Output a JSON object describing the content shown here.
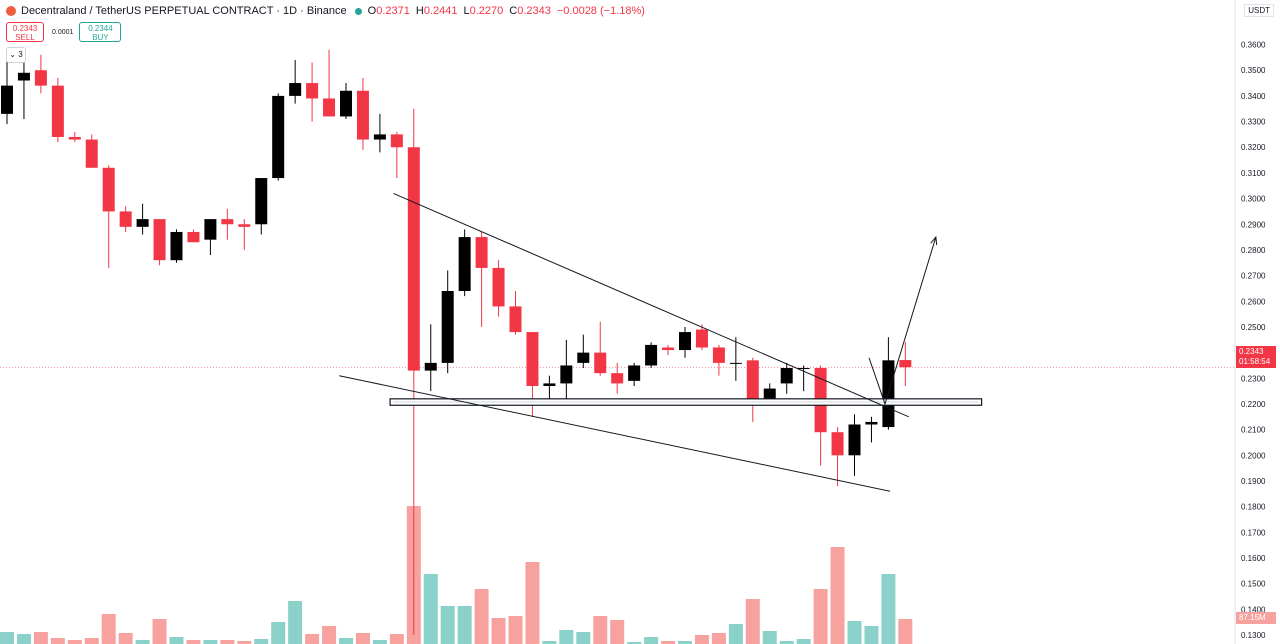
{
  "header": {
    "title": "Decentraland / TetherUS PERPETUAL CONTRACT · 1D · Binance",
    "o_label": "O",
    "o_value": "0.2371",
    "h_label": "H",
    "h_value": "0.2441",
    "l_label": "L",
    "l_value": "0.2270",
    "c_label": "C",
    "c_value": "0.2343",
    "change": "−0.0028 (−1.18%)"
  },
  "trade": {
    "sell_price": "0.2343",
    "sell_label": "SELL",
    "spread": "0.0001",
    "buy_price": "0.2344",
    "buy_label": "BUY"
  },
  "collapse_label": "3",
  "currency_label": "USDT",
  "last_price_tag": {
    "price": "0.2343",
    "countdown": "01:58:54"
  },
  "volume_tag": "87.15M",
  "colors": {
    "up": "#000000",
    "down": "#f23645",
    "vol_up": "#89d1c9",
    "vol_down": "#f7a29f"
  },
  "chart_data": {
    "type": "candlestick",
    "y_ticks": [
      "0.3600",
      "0.3500",
      "0.3400",
      "0.3300",
      "0.3200",
      "0.3100",
      "0.3000",
      "0.2900",
      "0.2800",
      "0.2700",
      "0.2600",
      "0.2500",
      "0.2400",
      "0.2300",
      "0.2200",
      "0.2100",
      "0.2000",
      "0.1900",
      "0.1800",
      "0.1700",
      "0.1600",
      "0.1500",
      "0.1400",
      "0.1300"
    ],
    "ylim": [
      0.1265,
      0.3645
    ],
    "candles": [
      {
        "o": 0.333,
        "h": 0.355,
        "l": 0.329,
        "c": 0.344,
        "v": 12
      },
      {
        "o": 0.346,
        "h": 0.354,
        "l": 0.331,
        "c": 0.349,
        "v": 10
      },
      {
        "o": 0.35,
        "h": 0.356,
        "l": 0.341,
        "c": 0.344,
        "v": 12
      },
      {
        "o": 0.344,
        "h": 0.347,
        "l": 0.322,
        "c": 0.324,
        "v": 6
      },
      {
        "o": 0.324,
        "h": 0.326,
        "l": 0.322,
        "c": 0.323,
        "v": 4
      },
      {
        "o": 0.323,
        "h": 0.325,
        "l": 0.312,
        "c": 0.312,
        "v": 6
      },
      {
        "o": 0.312,
        "h": 0.313,
        "l": 0.273,
        "c": 0.295,
        "v": 30
      },
      {
        "o": 0.295,
        "h": 0.297,
        "l": 0.287,
        "c": 0.289,
        "v": 11
      },
      {
        "o": 0.289,
        "h": 0.298,
        "l": 0.286,
        "c": 0.292,
        "v": 4
      },
      {
        "o": 0.292,
        "h": 0.292,
        "l": 0.274,
        "c": 0.276,
        "v": 25
      },
      {
        "o": 0.276,
        "h": 0.288,
        "l": 0.275,
        "c": 0.287,
        "v": 7
      },
      {
        "o": 0.287,
        "h": 0.288,
        "l": 0.283,
        "c": 0.283,
        "v": 4
      },
      {
        "o": 0.284,
        "h": 0.292,
        "l": 0.278,
        "c": 0.292,
        "v": 4
      },
      {
        "o": 0.292,
        "h": 0.296,
        "l": 0.284,
        "c": 0.29,
        "v": 4
      },
      {
        "o": 0.29,
        "h": 0.292,
        "l": 0.28,
        "c": 0.289,
        "v": 3
      },
      {
        "o": 0.29,
        "h": 0.308,
        "l": 0.286,
        "c": 0.308,
        "v": 5
      },
      {
        "o": 0.308,
        "h": 0.341,
        "l": 0.307,
        "c": 0.34,
        "v": 22
      },
      {
        "o": 0.34,
        "h": 0.354,
        "l": 0.337,
        "c": 0.345,
        "v": 43
      },
      {
        "o": 0.345,
        "h": 0.353,
        "l": 0.33,
        "c": 0.339,
        "v": 10
      },
      {
        "o": 0.339,
        "h": 0.358,
        "l": 0.332,
        "c": 0.332,
        "v": 18
      },
      {
        "o": 0.332,
        "h": 0.345,
        "l": 0.331,
        "c": 0.342,
        "v": 6
      },
      {
        "o": 0.342,
        "h": 0.347,
        "l": 0.319,
        "c": 0.323,
        "v": 11
      },
      {
        "o": 0.323,
        "h": 0.333,
        "l": 0.318,
        "c": 0.325,
        "v": 4
      },
      {
        "o": 0.325,
        "h": 0.326,
        "l": 0.308,
        "c": 0.32,
        "v": 10
      },
      {
        "o": 0.32,
        "h": 0.335,
        "l": 0.13,
        "c": 0.233,
        "v": 138
      },
      {
        "o": 0.233,
        "h": 0.251,
        "l": 0.225,
        "c": 0.236,
        "v": 70
      },
      {
        "o": 0.236,
        "h": 0.272,
        "l": 0.232,
        "c": 0.264,
        "v": 38
      },
      {
        "o": 0.264,
        "h": 0.288,
        "l": 0.262,
        "c": 0.285,
        "v": 38
      },
      {
        "o": 0.285,
        "h": 0.287,
        "l": 0.25,
        "c": 0.273,
        "v": 55
      },
      {
        "o": 0.273,
        "h": 0.276,
        "l": 0.254,
        "c": 0.258,
        "v": 26
      },
      {
        "o": 0.258,
        "h": 0.264,
        "l": 0.247,
        "c": 0.248,
        "v": 28
      },
      {
        "o": 0.248,
        "h": 0.248,
        "l": 0.215,
        "c": 0.227,
        "v": 82
      },
      {
        "o": 0.227,
        "h": 0.231,
        "l": 0.222,
        "c": 0.228,
        "v": 3
      },
      {
        "o": 0.228,
        "h": 0.245,
        "l": 0.222,
        "c": 0.235,
        "v": 14
      },
      {
        "o": 0.236,
        "h": 0.247,
        "l": 0.234,
        "c": 0.24,
        "v": 12
      },
      {
        "o": 0.24,
        "h": 0.252,
        "l": 0.231,
        "c": 0.232,
        "v": 28
      },
      {
        "o": 0.232,
        "h": 0.236,
        "l": 0.224,
        "c": 0.228,
        "v": 24
      },
      {
        "o": 0.229,
        "h": 0.236,
        "l": 0.227,
        "c": 0.235,
        "v": 2
      },
      {
        "o": 0.235,
        "h": 0.244,
        "l": 0.234,
        "c": 0.243,
        "v": 7
      },
      {
        "o": 0.242,
        "h": 0.243,
        "l": 0.239,
        "c": 0.241,
        "v": 3
      },
      {
        "o": 0.241,
        "h": 0.25,
        "l": 0.238,
        "c": 0.248,
        "v": 3
      },
      {
        "o": 0.249,
        "h": 0.251,
        "l": 0.241,
        "c": 0.242,
        "v": 9
      },
      {
        "o": 0.242,
        "h": 0.243,
        "l": 0.231,
        "c": 0.236,
        "v": 11
      },
      {
        "o": 0.236,
        "h": 0.246,
        "l": 0.229,
        "c": 0.236,
        "v": 20
      },
      {
        "o": 0.237,
        "h": 0.238,
        "l": 0.213,
        "c": 0.222,
        "v": 45
      },
      {
        "o": 0.222,
        "h": 0.228,
        "l": 0.22,
        "c": 0.226,
        "v": 13
      },
      {
        "o": 0.228,
        "h": 0.236,
        "l": 0.224,
        "c": 0.234,
        "v": 3
      },
      {
        "o": 0.234,
        "h": 0.235,
        "l": 0.225,
        "c": 0.234,
        "v": 5
      },
      {
        "o": 0.234,
        "h": 0.235,
        "l": 0.196,
        "c": 0.209,
        "v": 55
      },
      {
        "o": 0.209,
        "h": 0.211,
        "l": 0.188,
        "c": 0.2,
        "v": 97
      },
      {
        "o": 0.2,
        "h": 0.216,
        "l": 0.192,
        "c": 0.212,
        "v": 23
      },
      {
        "o": 0.212,
        "h": 0.215,
        "l": 0.205,
        "c": 0.213,
        "v": 18
      },
      {
        "o": 0.211,
        "h": 0.246,
        "l": 0.21,
        "c": 0.237,
        "v": 70
      },
      {
        "o": 0.2371,
        "h": 0.2441,
        "l": 0.227,
        "c": 0.2343,
        "v": 25
      }
    ],
    "trendlines": [
      {
        "x1": 22.8,
        "y1": 0.302,
        "x2": 53.2,
        "y2": 0.215
      },
      {
        "x1": 19.6,
        "y1": 0.231,
        "x2": 52.1,
        "y2": 0.186
      },
      {
        "x1": 51.8,
        "y1": 0.22,
        "x2": 54.8,
        "y2": 0.285
      }
    ],
    "support_zone": {
      "x1": 22.6,
      "x2": 57.5,
      "y_top": 0.222,
      "y_bottom": 0.2195
    }
  }
}
